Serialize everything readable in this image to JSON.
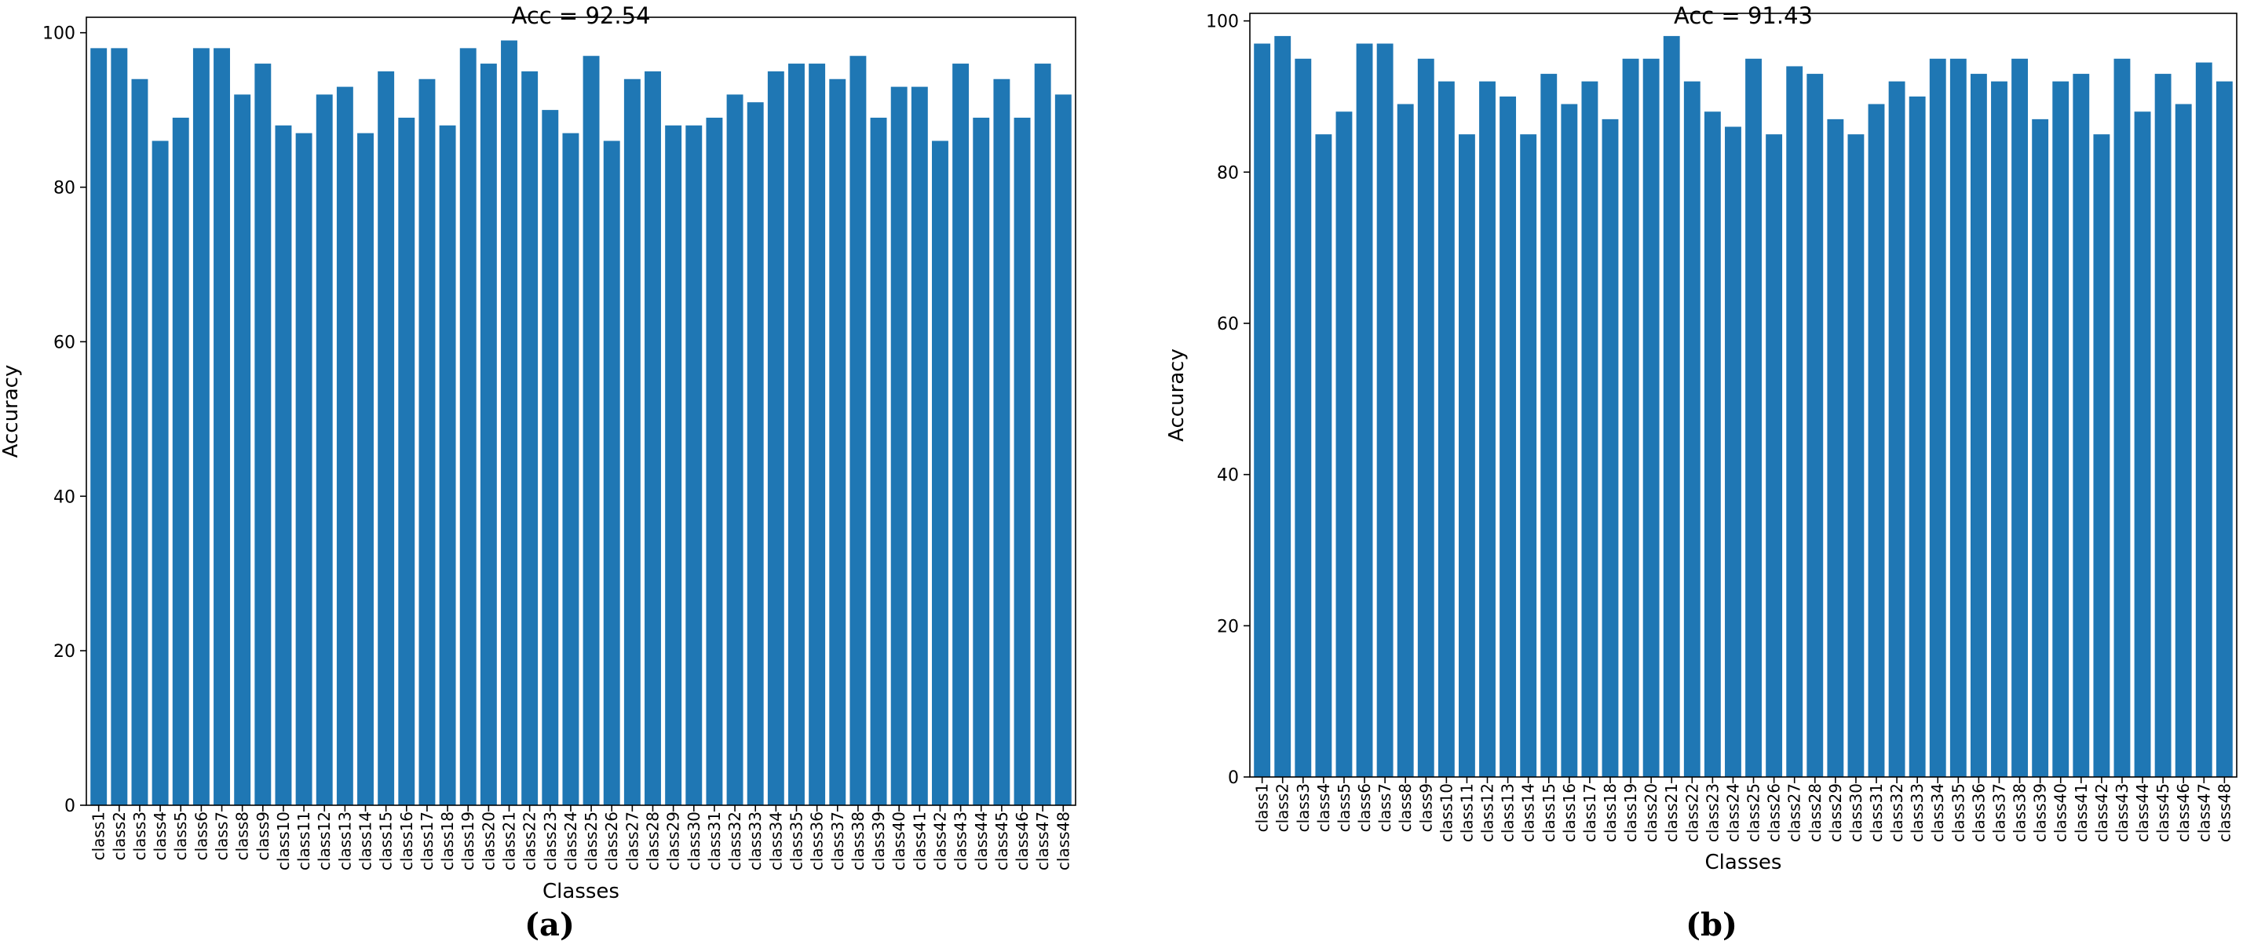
{
  "chart_data": [
    {
      "type": "bar",
      "panel_label": "(a)",
      "title": "Acc = 92.54",
      "xlabel": "Classes",
      "ylabel": "Accuracy",
      "ylim": [
        0,
        102
      ],
      "yticks": [
        0,
        20,
        40,
        60,
        80,
        100
      ],
      "color": "#1f77b4",
      "grid": false,
      "categories": [
        "class1",
        "class2",
        "class3",
        "class4",
        "class5",
        "class6",
        "class7",
        "class8",
        "class9",
        "class10",
        "class11",
        "class12",
        "class13",
        "class14",
        "class15",
        "class16",
        "class17",
        "class18",
        "class19",
        "class20",
        "class21",
        "class22",
        "class23",
        "class24",
        "class25",
        "class26",
        "class27",
        "class28",
        "class29",
        "class30",
        "class31",
        "class32",
        "class33",
        "class34",
        "class35",
        "class36",
        "class37",
        "class38",
        "class39",
        "class40",
        "class41",
        "class42",
        "class43",
        "class44",
        "class45",
        "class46",
        "class47",
        "class48"
      ],
      "values": [
        98,
        98,
        94,
        86,
        89,
        98,
        98,
        92,
        96,
        88,
        87,
        92,
        93,
        87,
        95,
        89,
        94,
        88,
        98,
        96,
        99,
        95,
        90,
        87,
        97,
        86,
        94,
        95,
        88,
        88,
        89,
        92,
        91,
        95,
        96,
        96,
        94,
        97,
        89,
        93,
        93,
        86,
        96,
        89,
        94,
        89,
        96,
        92
      ]
    },
    {
      "type": "bar",
      "panel_label": "(b)",
      "title": "Acc = 91.43",
      "xlabel": "Classes",
      "ylabel": "Accuracy",
      "ylim": [
        0,
        101
      ],
      "yticks": [
        0,
        20,
        40,
        60,
        80,
        100
      ],
      "color": "#1f77b4",
      "grid": false,
      "categories": [
        "class1",
        "class2",
        "class3",
        "class4",
        "class5",
        "class6",
        "class7",
        "class8",
        "class9",
        "class10",
        "class11",
        "class12",
        "class13",
        "class14",
        "class15",
        "class16",
        "class17",
        "class18",
        "class19",
        "class20",
        "class21",
        "class22",
        "class23",
        "class24",
        "class25",
        "class26",
        "class27",
        "class28",
        "class29",
        "class30",
        "class31",
        "class32",
        "class33",
        "class34",
        "class35",
        "class36",
        "class37",
        "class38",
        "class39",
        "class40",
        "class41",
        "class42",
        "class43",
        "class44",
        "class45",
        "class46",
        "class47",
        "class48"
      ],
      "values": [
        97,
        98,
        95,
        85,
        88,
        97,
        97,
        89,
        95,
        92,
        85,
        92,
        90,
        85,
        93,
        89,
        92,
        87,
        95,
        95,
        98,
        92,
        88,
        86,
        95,
        85,
        94,
        93,
        87,
        85,
        89,
        92,
        90,
        95,
        95,
        93,
        92,
        95,
        87,
        92,
        93,
        85,
        95,
        88,
        93,
        89,
        94.5,
        92
      ]
    }
  ]
}
